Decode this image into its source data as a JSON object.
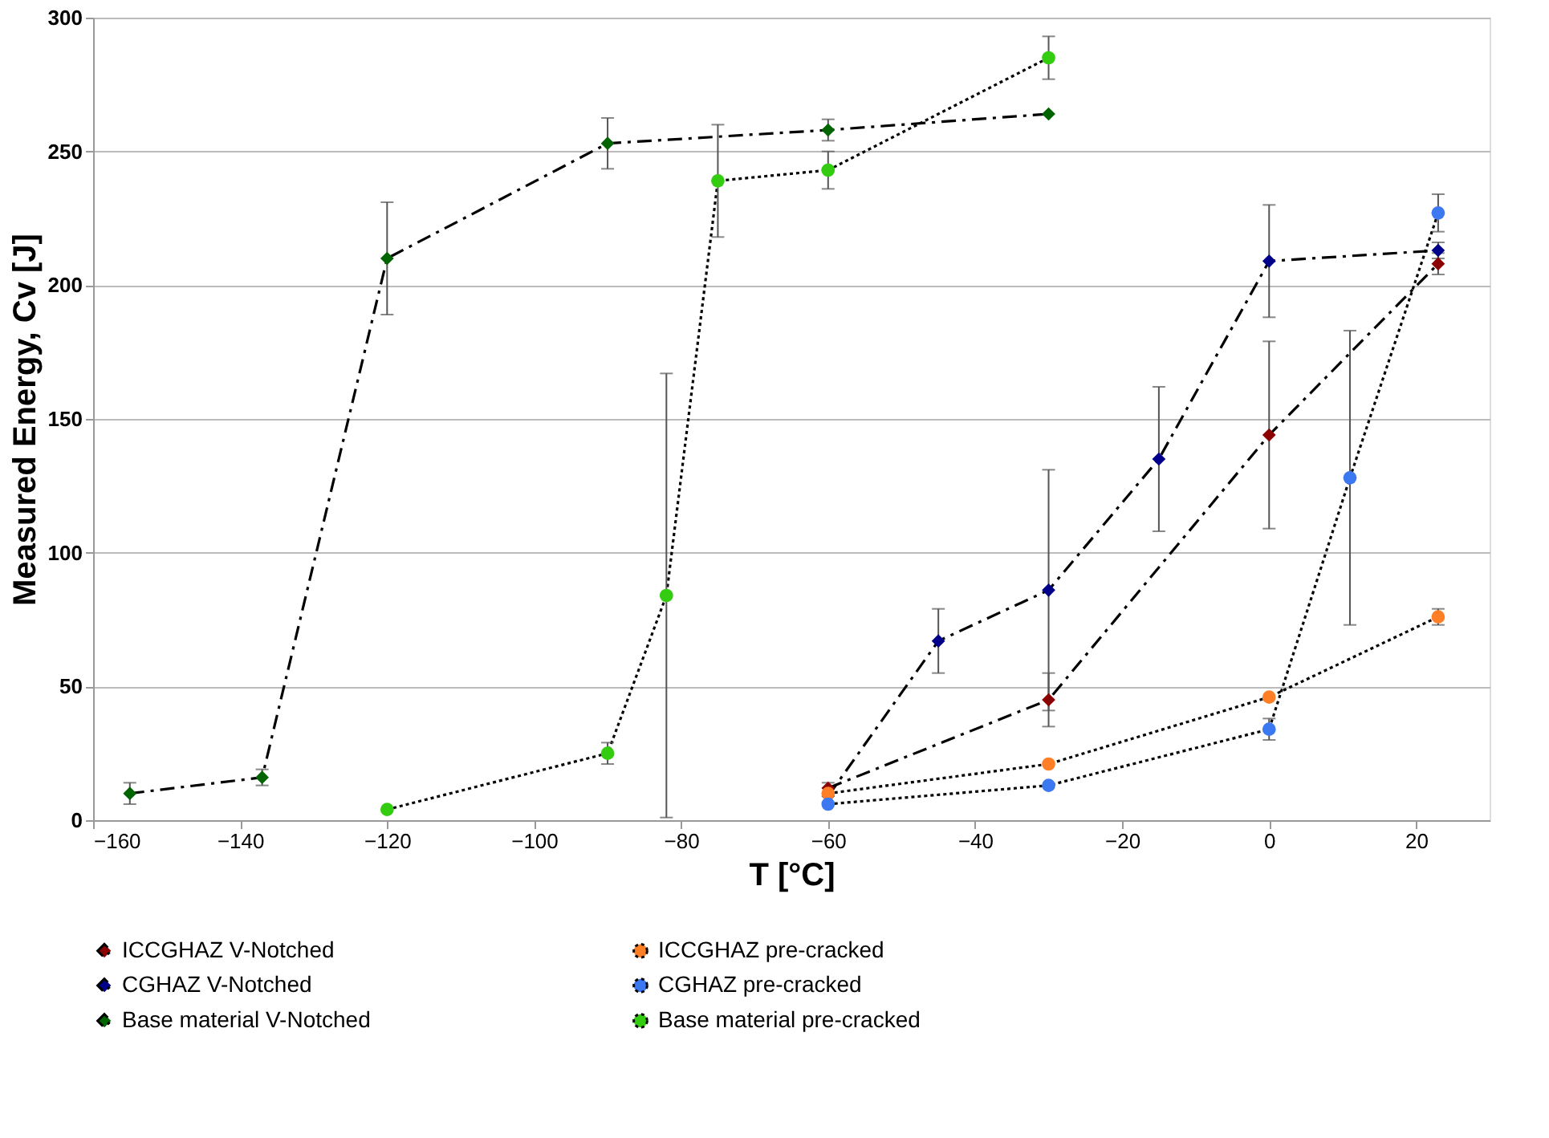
{
  "chart_data": {
    "type": "line",
    "xlabel": "T [°C]",
    "ylabel": "Measured Energy, Cv   [J]",
    "xlim": [
      -160,
      30
    ],
    "xticks": [
      -160,
      -140,
      -120,
      -100,
      -80,
      -60,
      -40,
      -20,
      0,
      20
    ],
    "ylim": [
      0,
      300
    ],
    "yticks": [
      0,
      50,
      100,
      150,
      200,
      250,
      300
    ],
    "grid": "y",
    "legend": "bottom",
    "series": [
      {
        "name": "ICCGHAZ V-Notched",
        "color": "#8b0000",
        "marker": "diamond",
        "line_style": "dashed",
        "x": [
          -60,
          -30,
          0,
          23
        ],
        "values": [
          12,
          45,
          144,
          208
        ],
        "errors": [
          2,
          10,
          35,
          4
        ]
      },
      {
        "name": "CGHAZ V-Notched",
        "color": "#00008b",
        "marker": "diamond",
        "line_style": "dashed",
        "x": [
          -60,
          -45,
          -30,
          -15,
          0,
          23
        ],
        "values": [
          9,
          67,
          86,
          135,
          209,
          213
        ],
        "errors": [
          null,
          12,
          45,
          27,
          21,
          3
        ]
      },
      {
        "name": "Base material V-Notched",
        "color": "#006400",
        "marker": "diamond",
        "line_style": "dashed",
        "x": [
          -155,
          -137,
          -120,
          -90,
          -60,
          -30
        ],
        "values": [
          10,
          16,
          210,
          253,
          258,
          264
        ],
        "errors": [
          4,
          3,
          21,
          9.5,
          4,
          null
        ]
      },
      {
        "name": "ICCGHAZ pre-cracked",
        "color": "#ff7f27",
        "marker": "circle",
        "line_style": "dotted",
        "x": [
          -60,
          -30,
          0,
          23
        ],
        "values": [
          10,
          21,
          46,
          76
        ],
        "errors": [
          null,
          null,
          null,
          3
        ]
      },
      {
        "name": "CGHAZ pre-cracked",
        "color": "#3c78f0",
        "marker": "circle",
        "line_style": "dotted",
        "x": [
          -60,
          -30,
          0,
          11,
          23
        ],
        "values": [
          6,
          13,
          34,
          128,
          227
        ],
        "errors": [
          null,
          null,
          4,
          55,
          7
        ]
      },
      {
        "name": "Base material pre-cracked",
        "color": "#33cc11",
        "marker": "circle",
        "line_style": "dotted",
        "x": [
          -120,
          -90,
          -82,
          -75,
          -60,
          -30
        ],
        "values": [
          4,
          25,
          84,
          239,
          243,
          285
        ],
        "errors": [
          null,
          4,
          83,
          21,
          7,
          8
        ]
      }
    ]
  }
}
